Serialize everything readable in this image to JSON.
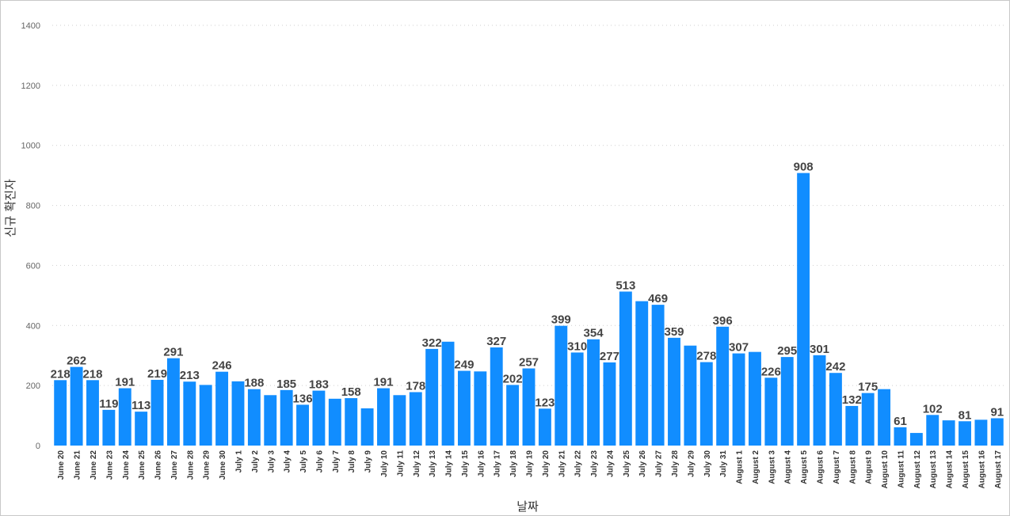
{
  "chart_data": {
    "type": "bar",
    "xlabel": "날짜",
    "ylabel": "신규 확진자",
    "ylim": [
      0,
      1400
    ],
    "yticks": [
      0,
      200,
      400,
      600,
      800,
      1000,
      1200,
      1400
    ],
    "grid": true,
    "color": "#118DFF",
    "categories": [
      "June 20",
      "June 21",
      "June 22",
      "June 23",
      "June 24",
      "June 25",
      "June 26",
      "June 27",
      "June 28",
      "June 29",
      "June 30",
      "July 1",
      "July 2",
      "July 3",
      "July 4",
      "July 5",
      "July 6",
      "July 7",
      "July 8",
      "July 9",
      "July 10",
      "July 11",
      "July 12",
      "July 13",
      "July 14",
      "July 15",
      "July 16",
      "July 17",
      "July 18",
      "July 19",
      "July 20",
      "July 21",
      "July 22",
      "July 23",
      "July 24",
      "July 25",
      "July 26",
      "July 27",
      "July 28",
      "July 29",
      "July 30",
      "July 31",
      "August 1",
      "August 2",
      "August 3",
      "August 4",
      "August 5",
      "August 6",
      "August 7",
      "August 8",
      "August 9",
      "August 10",
      "August 11",
      "August 12",
      "August 13",
      "August 14",
      "August 15",
      "August 16",
      "August 17"
    ],
    "values": [
      218,
      262,
      218,
      119,
      191,
      113,
      219,
      291,
      213,
      202,
      246,
      214,
      188,
      168,
      185,
      136,
      183,
      156,
      158,
      124,
      191,
      168,
      178,
      322,
      346,
      249,
      247,
      327,
      202,
      257,
      123,
      399,
      310,
      354,
      277,
      513,
      481,
      469,
      359,
      333,
      278,
      396,
      307,
      312,
      226,
      295,
      908,
      301,
      242,
      132,
      175,
      188,
      61,
      42,
      102,
      84,
      81,
      86,
      91
    ],
    "data_labels": [
      218,
      262,
      218,
      119,
      191,
      113,
      219,
      291,
      213,
      null,
      246,
      null,
      188,
      null,
      185,
      136,
      183,
      null,
      158,
      null,
      191,
      null,
      178,
      322,
      null,
      249,
      null,
      327,
      202,
      257,
      123,
      399,
      310,
      354,
      277,
      513,
      null,
      469,
      359,
      null,
      278,
      396,
      307,
      null,
      226,
      295,
      908,
      301,
      242,
      132,
      175,
      null,
      61,
      null,
      102,
      null,
      81,
      null,
      91
    ]
  }
}
